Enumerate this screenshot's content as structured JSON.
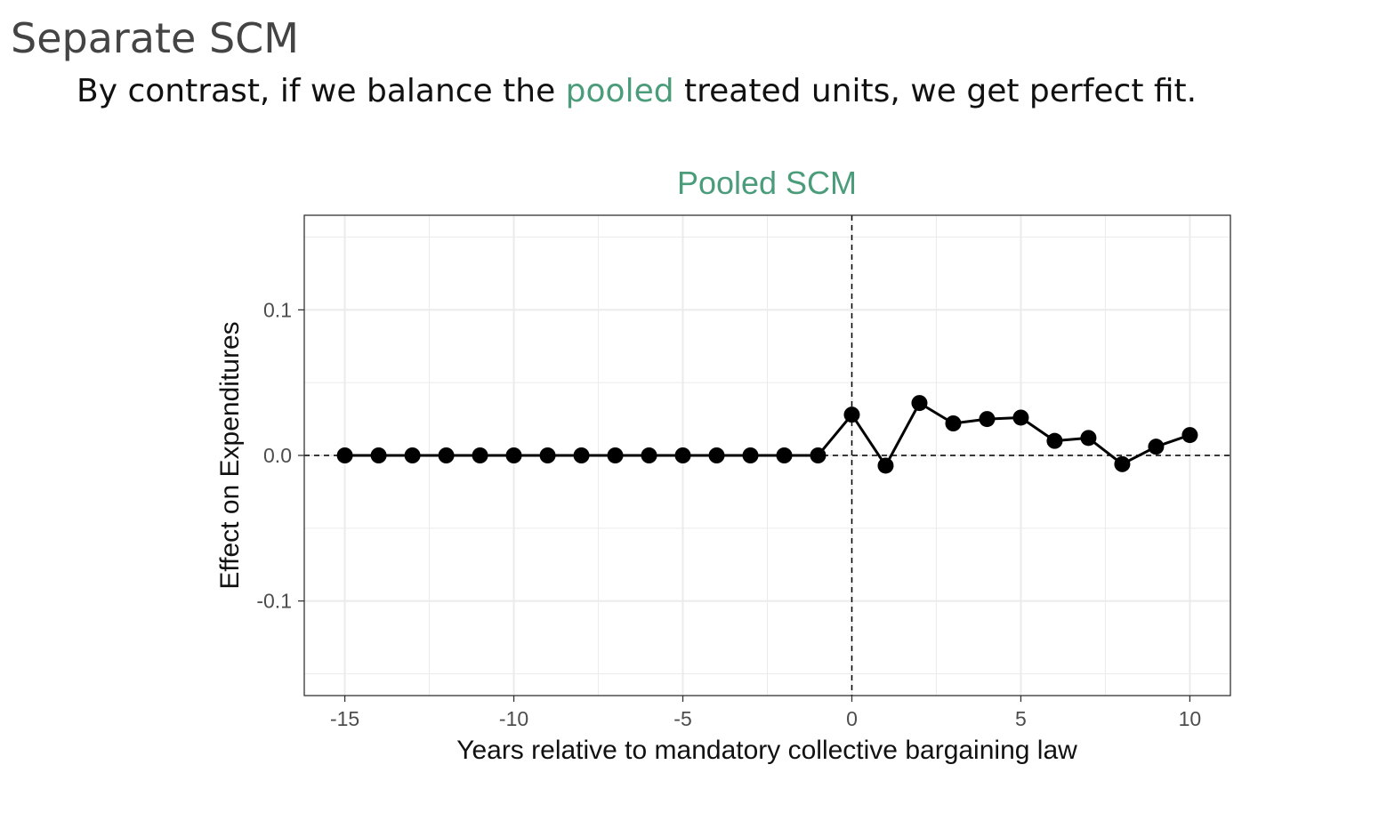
{
  "slide": {
    "title": "Separate SCM",
    "body_before": "By contrast, if we balance the ",
    "body_highlight": "pooled",
    "body_after": " treated units, we get perfect fit."
  },
  "colors": {
    "accent": "#4a9c7a",
    "title": "#444444",
    "text": "#111111",
    "series": "#000000",
    "grid": "#ebebeb"
  },
  "chart_data": {
    "type": "line",
    "title": "Pooled SCM",
    "xlabel": "Years relative to mandatory collective bargaining law",
    "ylabel": "Effect on Expenditures",
    "xlim": [
      -16.2,
      11.2
    ],
    "ylim": [
      -0.165,
      0.165
    ],
    "x_ticks": [
      -15,
      -10,
      -5,
      0,
      5,
      10
    ],
    "x_tick_labels": [
      "-15",
      "-10",
      "-5",
      "0",
      "5",
      "10"
    ],
    "y_ticks": [
      -0.1,
      0.0,
      0.1
    ],
    "y_tick_labels": [
      "-0.1",
      "0.0",
      "0.1"
    ],
    "grid": true,
    "reference_lines": {
      "vertical_x": 0,
      "horizontal_y": 0,
      "style": "dashed"
    },
    "series": [
      {
        "x": [
          -15,
          -14,
          -13,
          -12,
          -11,
          -10,
          -9,
          -8,
          -7,
          -6,
          -5,
          -4,
          -3,
          -2,
          -1,
          0,
          1,
          2,
          3,
          4,
          5,
          6,
          7,
          8,
          9,
          10
        ],
        "y": [
          0.0,
          0.0,
          0.0,
          0.0,
          0.0,
          0.0,
          0.0,
          0.0,
          0.0,
          0.0,
          0.0,
          0.0,
          0.0,
          0.0,
          0.0,
          0.028,
          -0.007,
          0.036,
          0.022,
          0.025,
          0.026,
          0.01,
          0.012,
          -0.006,
          0.006,
          0.014
        ]
      }
    ]
  }
}
